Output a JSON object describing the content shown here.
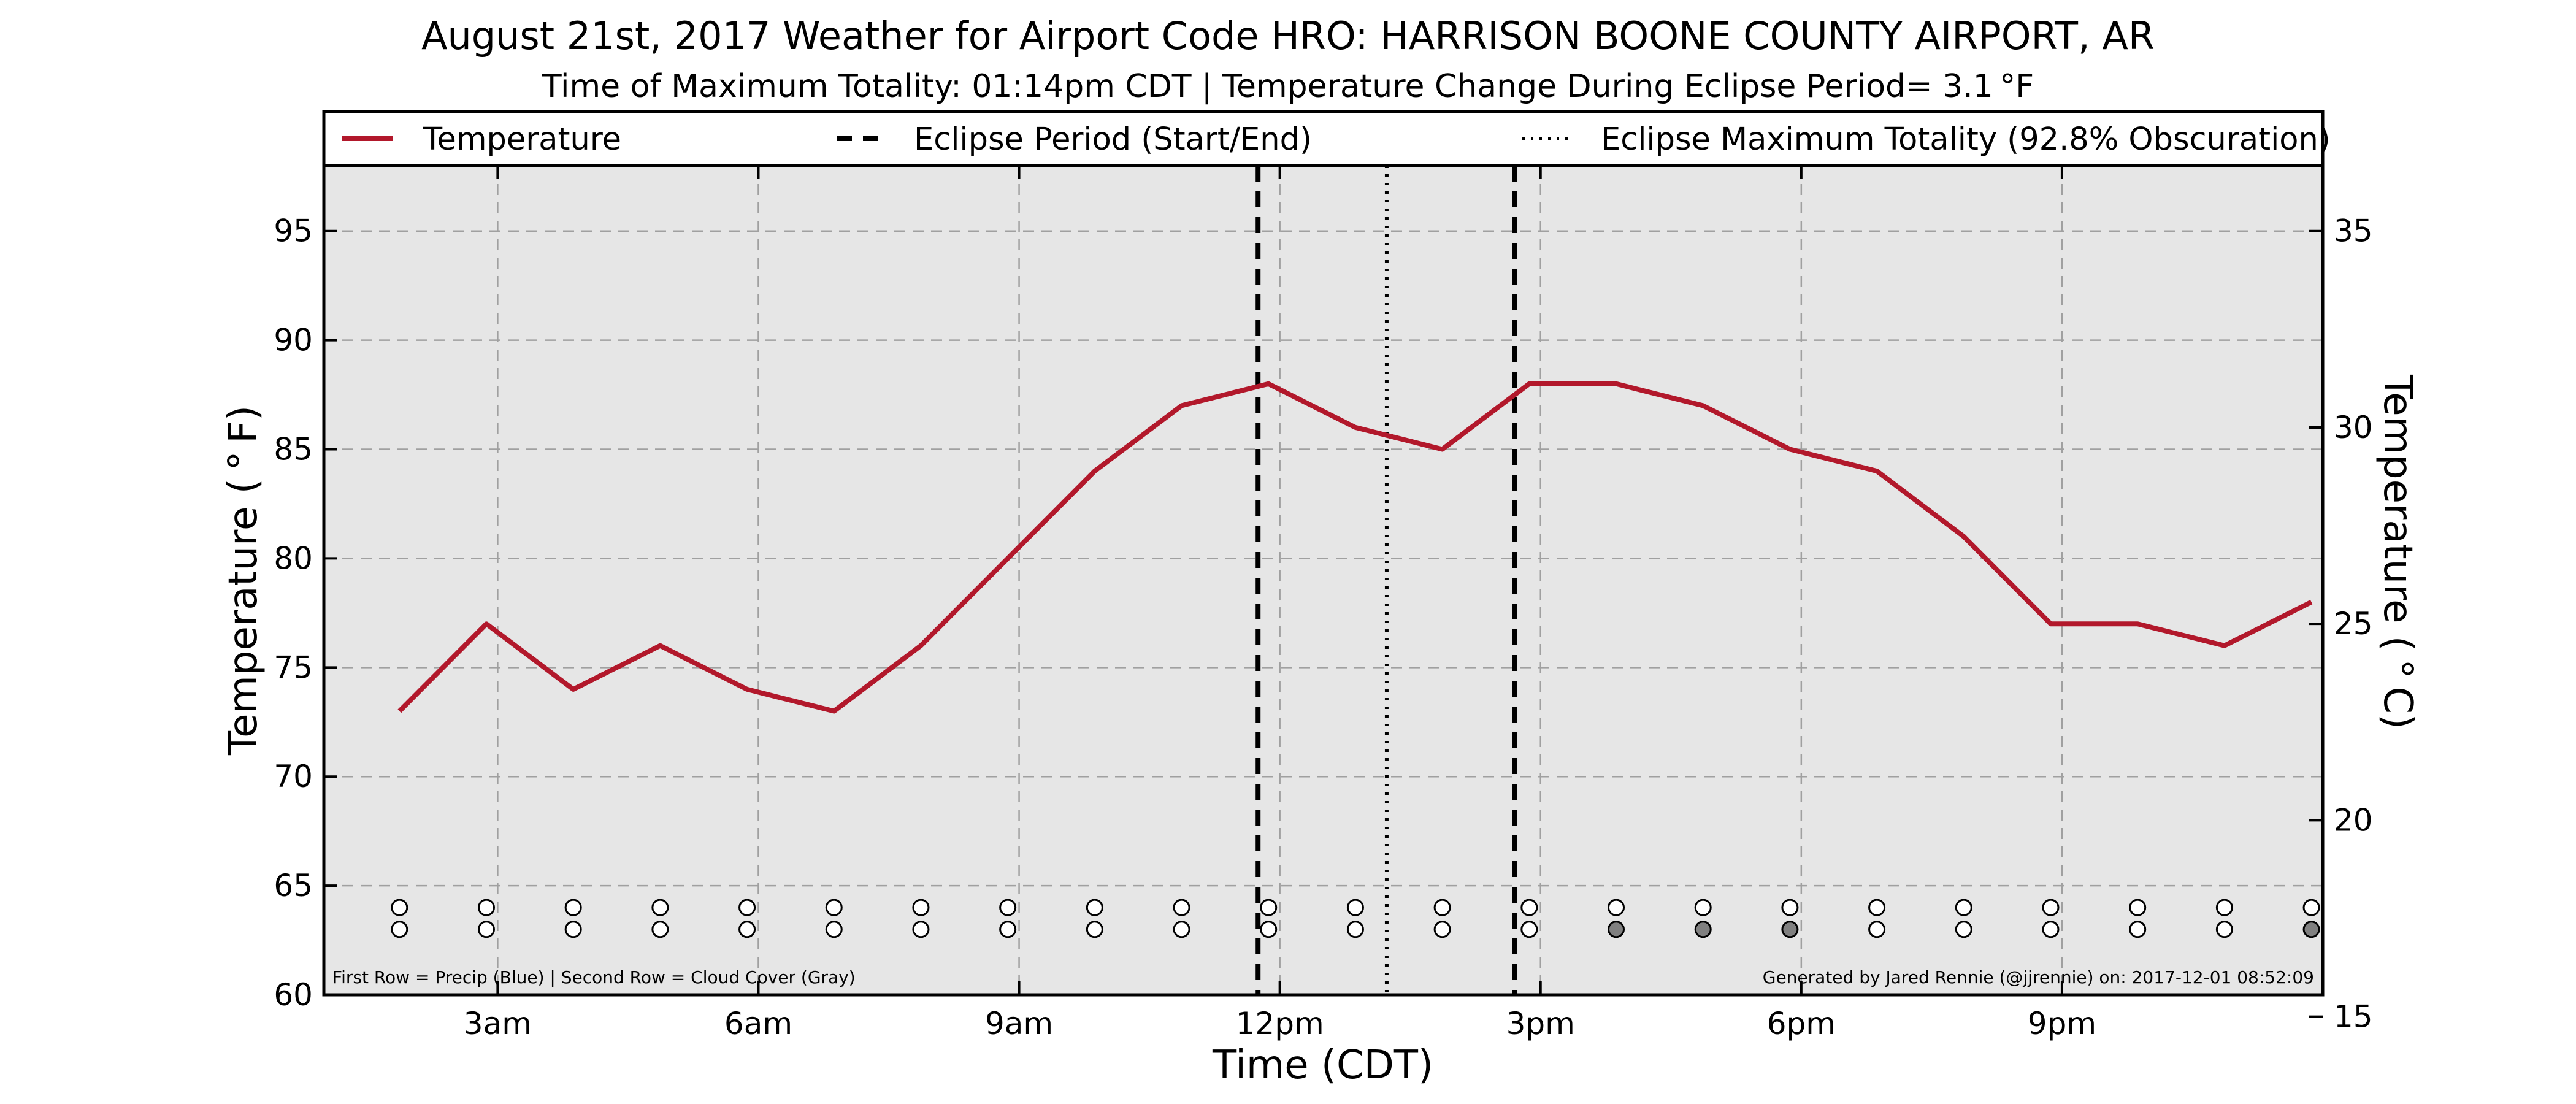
{
  "chart_data": {
    "type": "line",
    "title": "August 21st, 2017 Weather for Airport Code HRO: HARRISON BOONE COUNTY AIRPORT, AR",
    "subtitle": "Time of Maximum Totality: 01:14pm CDT | Temperature Change During Eclipse Period= 3.1 °F",
    "xlabel": "Time (CDT)",
    "ylabel": "Temperature ( ° F)",
    "ylabel_right": "Temperature ( ° C)",
    "ylim": [
      60,
      98
    ],
    "ylim_right_c": [
      15.5556,
      36.6667
    ],
    "xlim_hours": [
      1.0,
      24.0
    ],
    "yticks": [
      60,
      65,
      70,
      75,
      80,
      85,
      90,
      95
    ],
    "yticks_right": [
      15,
      20,
      25,
      30,
      35
    ],
    "xticks": [
      {
        "hour": 3,
        "label": "3am"
      },
      {
        "hour": 6,
        "label": "6am"
      },
      {
        "hour": 9,
        "label": "9am"
      },
      {
        "hour": 12,
        "label": "12pm"
      },
      {
        "hour": 15,
        "label": "3pm"
      },
      {
        "hour": 18,
        "label": "6pm"
      },
      {
        "hour": 21,
        "label": "9pm"
      }
    ],
    "grid": true,
    "legend_placement": "top, above plot",
    "series": [
      {
        "name": "Temperature",
        "color": "#b2182b",
        "x": [
          1.87,
          2.87,
          3.87,
          4.87,
          5.87,
          6.87,
          7.87,
          8.87,
          9.87,
          10.87,
          11.87,
          12.87,
          13.87,
          14.87,
          15.87,
          16.87,
          17.87,
          18.87,
          19.87,
          20.87,
          21.87,
          22.87,
          23.87
        ],
        "values": [
          73,
          77,
          74,
          76,
          74,
          73,
          76,
          80,
          84,
          87,
          88,
          86,
          85,
          88,
          88,
          87,
          85,
          84,
          81,
          77,
          77,
          76,
          78
        ]
      }
    ],
    "eclipse_start_hour": 11.75,
    "eclipse_end_hour": 14.7,
    "max_totality_hour": 13.23,
    "legend": [
      {
        "label": "Temperature",
        "style": "solid",
        "color": "#b2182b"
      },
      {
        "label": "Eclipse Period (Start/End)",
        "style": "dashed",
        "color": "#000000"
      },
      {
        "label": "Eclipse Maximum Totality (92.8% Obscuration)",
        "style": "dotted",
        "color": "#000000"
      }
    ],
    "markers": {
      "row1_value": 64,
      "row2_value": 63,
      "precip_row": [
        "none",
        "none",
        "none",
        "none",
        "none",
        "none",
        "none",
        "none",
        "none",
        "none",
        "none",
        "none",
        "none",
        "none",
        "none",
        "none",
        "none",
        "none",
        "none",
        "none",
        "none",
        "none",
        "none"
      ],
      "cloud_row": [
        "none",
        "none",
        "none",
        "none",
        "none",
        "none",
        "none",
        "none",
        "none",
        "none",
        "none",
        "none",
        "none",
        "none",
        "gray",
        "gray",
        "gray",
        "none",
        "none",
        "none",
        "none",
        "none",
        "gray"
      ],
      "colors": {
        "none": "#ffffff",
        "gray": "#808080",
        "blue": "#1f4fb4"
      }
    },
    "plot_background": "#e6e6e6",
    "footnote_left": "First Row = Precip (Blue) | Second Row = Cloud Cover (Gray)",
    "footnote_right": "Generated by Jared Rennie (@jjrennie) on: 2017-12-01 08:52:09"
  }
}
